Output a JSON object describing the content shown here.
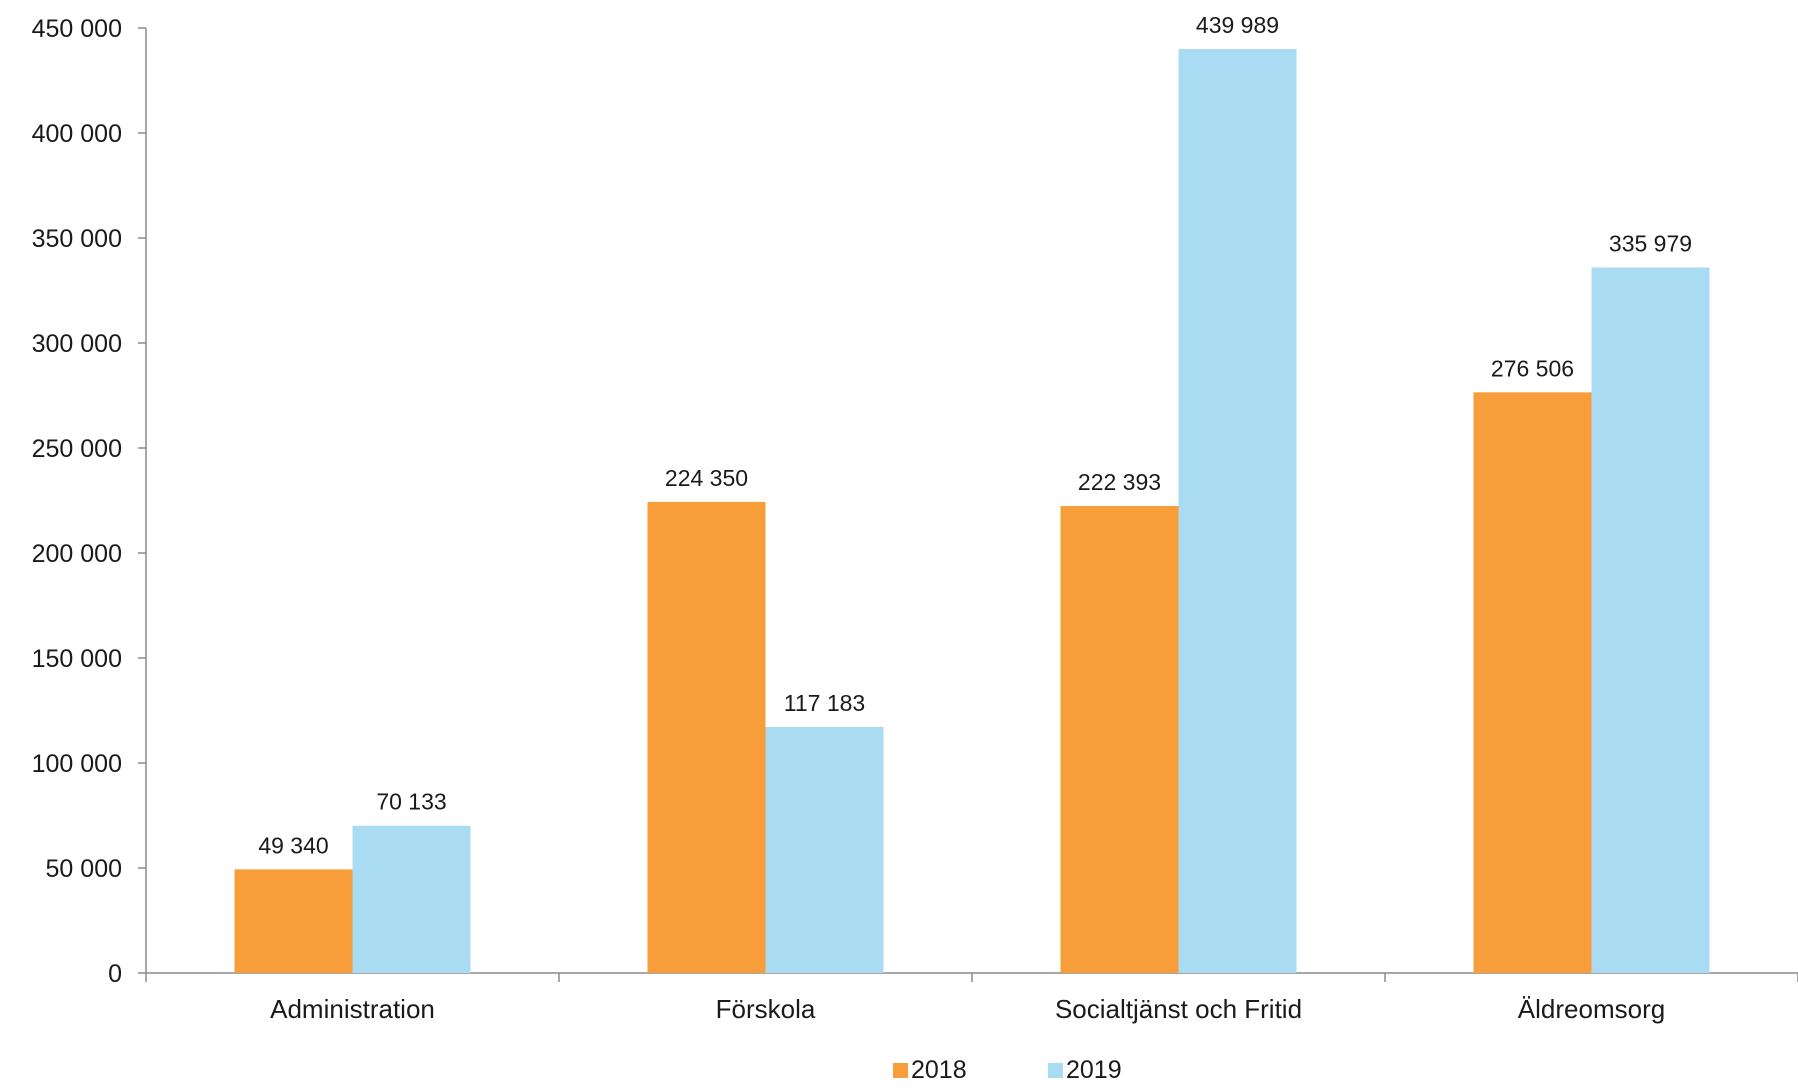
{
  "chart_data": {
    "type": "bar",
    "categories": [
      "Administration",
      "Förskola",
      "Socialtjänst och Fritid",
      "Äldreomsorg"
    ],
    "series": [
      {
        "name": "2018",
        "values": [
          49340,
          224350,
          222393,
          276506
        ],
        "labels": [
          "49 340",
          "224 350",
          "222 393",
          "276 506"
        ],
        "color": "#F79E3B"
      },
      {
        "name": "2019",
        "values": [
          70133,
          117183,
          439989,
          335979
        ],
        "labels": [
          "70 133",
          "117 183",
          "439 989",
          "335 979"
        ],
        "color": "#A9DCF3"
      }
    ],
    "y_ticks": [
      {
        "value": 0,
        "label": "0"
      },
      {
        "value": 50000,
        "label": "50 000"
      },
      {
        "value": 100000,
        "label": "100 000"
      },
      {
        "value": 150000,
        "label": "150 000"
      },
      {
        "value": 200000,
        "label": "200 000"
      },
      {
        "value": 250000,
        "label": "250 000"
      },
      {
        "value": 300000,
        "label": "300 000"
      },
      {
        "value": 350000,
        "label": "350 000"
      },
      {
        "value": 400000,
        "label": "400 000"
      },
      {
        "value": 450000,
        "label": "450 000"
      }
    ],
    "ylim": [
      0,
      450000
    ],
    "grid": false,
    "legend_position": "bottom"
  }
}
